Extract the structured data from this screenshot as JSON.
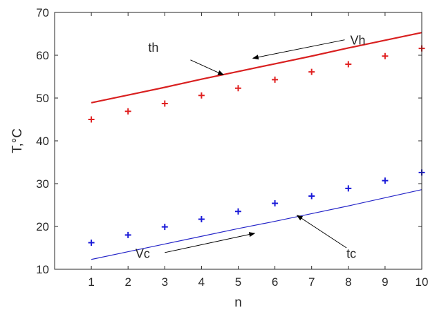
{
  "chart_data": {
    "type": "line",
    "xlabel": "n",
    "ylabel": "T,°C",
    "xlim": [
      0,
      10
    ],
    "ylim": [
      10,
      70
    ],
    "xticks": [
      1,
      2,
      3,
      4,
      5,
      6,
      7,
      8,
      9,
      10
    ],
    "yticks": [
      10,
      20,
      30,
      40,
      50,
      60,
      70
    ],
    "grid": false,
    "x": [
      1,
      2,
      3,
      4,
      5,
      6,
      7,
      8,
      9,
      10
    ],
    "series": [
      {
        "name": "th",
        "style": "line",
        "color": "#d92020",
        "values": [
          48.9,
          50.7,
          52.5,
          54.4,
          56.2,
          58.0,
          59.8,
          61.7,
          63.5,
          65.3
        ]
      },
      {
        "name": "Vh",
        "style": "marker",
        "color": "#e02020",
        "values": [
          45.0,
          46.9,
          48.7,
          50.6,
          52.3,
          54.3,
          56.1,
          57.9,
          59.8,
          61.6
        ]
      },
      {
        "name": "Vc",
        "style": "marker",
        "color": "#1a1ad8",
        "values": [
          16.2,
          18.0,
          19.9,
          21.7,
          23.5,
          25.4,
          27.1,
          28.9,
          30.7,
          32.6
        ]
      },
      {
        "name": "tc",
        "style": "line",
        "color": "#2424c8",
        "values": [
          12.3,
          14.1,
          15.9,
          17.7,
          19.5,
          21.2,
          23.0,
          24.8,
          26.7,
          28.6
        ]
      }
    ],
    "annotations": [
      {
        "text": "th",
        "label_at": [
          2.55,
          61.8
        ],
        "arrow_from": [
          3.7,
          58.9
        ],
        "arrow_to": [
          4.6,
          55.4
        ]
      },
      {
        "text": "Vh",
        "label_at": [
          8.05,
          63.5
        ],
        "arrow_from": [
          7.9,
          63.6
        ],
        "arrow_to": [
          5.4,
          59.3
        ]
      },
      {
        "text": "Vc",
        "label_at": [
          2.2,
          13.6
        ],
        "arrow_from": [
          3.0,
          13.9
        ],
        "arrow_to": [
          5.45,
          18.4
        ]
      },
      {
        "text": "tc",
        "label_at": [
          7.95,
          13.6
        ],
        "arrow_from": [
          7.95,
          15.0
        ],
        "arrow_to": [
          6.6,
          22.6
        ]
      }
    ]
  }
}
